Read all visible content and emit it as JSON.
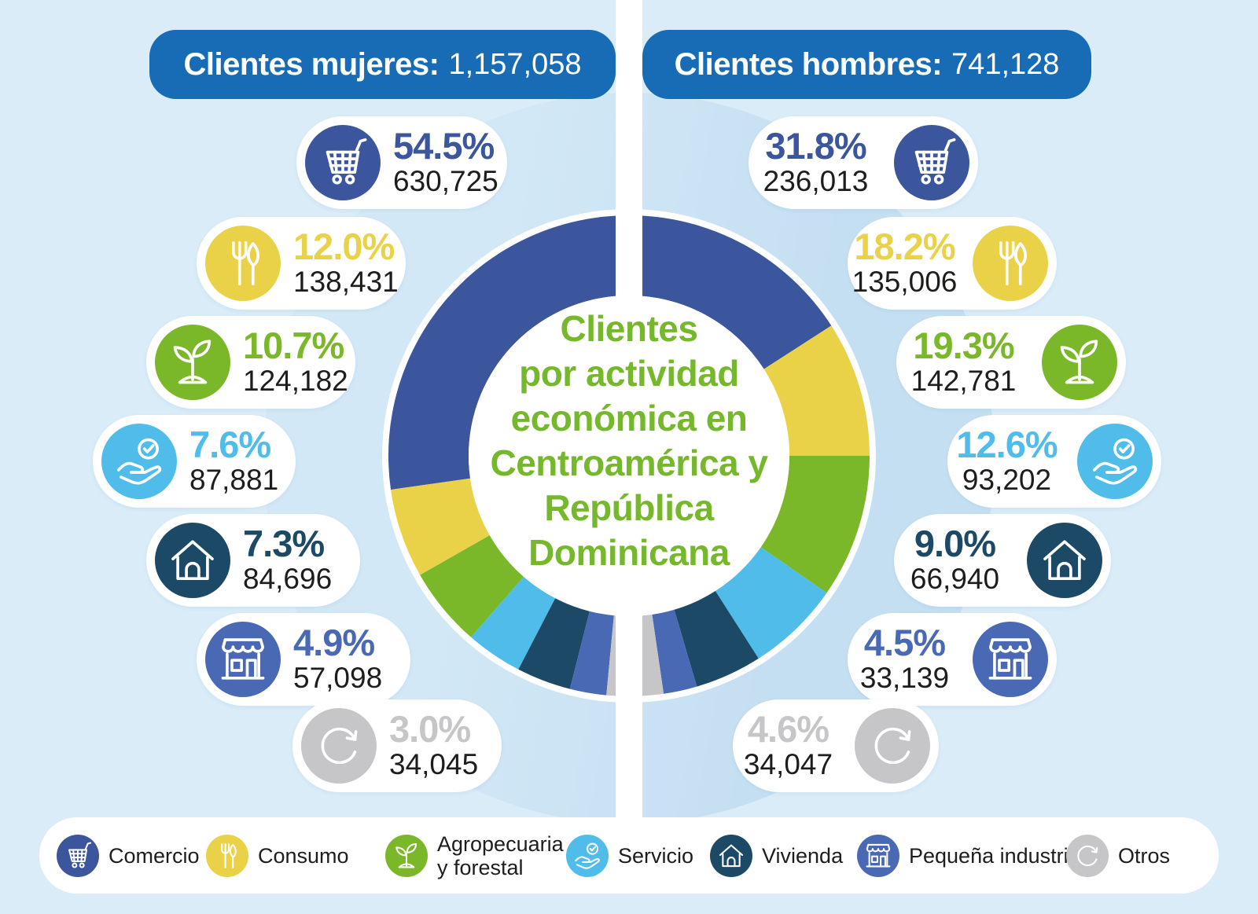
{
  "header": {
    "left": {
      "label": "Clientes mujeres:",
      "value": "1,157,058"
    },
    "right": {
      "label": "Clientes hombres:",
      "value": "741,128"
    },
    "bar_color": "#176CB5"
  },
  "donut_title": {
    "text": "Clientes por actividad económica en Centroamérica y República Dominicana",
    "lines": [
      "Clientes",
      "por actividad",
      "económica en",
      "Centroamérica y",
      "República",
      "Dominicana"
    ],
    "color": "#76B82C"
  },
  "categories": [
    {
      "label": "Comercio",
      "icon": "cart-icon",
      "color": "#3B569D"
    },
    {
      "label": "Consumo",
      "icon": "cutlery-icon",
      "color": "#EAD248"
    },
    {
      "label": "Agropecuaria\ny forestal",
      "icon": "plant-icon",
      "color": "#7AB829"
    },
    {
      "label": "Servicio",
      "icon": "hand-check-icon",
      "color": "#4FBCE9"
    },
    {
      "label": "Vivienda",
      "icon": "house-icon",
      "color": "#1C4A66"
    },
    {
      "label": "Pequeña industria",
      "icon": "store-icon",
      "color": "#4A69B4"
    },
    {
      "label": "Otros",
      "icon": "refresh-icon",
      "color": "#C6C6C8"
    }
  ],
  "left_stats": [
    {
      "pct": "54.5%",
      "count": "630,725"
    },
    {
      "pct": "12.0%",
      "count": "138,431"
    },
    {
      "pct": "10.7%",
      "count": "124,182"
    },
    {
      "pct": "7.6%",
      "count": "87,881"
    },
    {
      "pct": "7.3%",
      "count": "84,696"
    },
    {
      "pct": "4.9%",
      "count": "57,098"
    },
    {
      "pct": "3.0%",
      "count": "34,045"
    }
  ],
  "right_stats": [
    {
      "pct": "31.8%",
      "count": "236,013"
    },
    {
      "pct": "18.2%",
      "count": "135,006"
    },
    {
      "pct": "19.3%",
      "count": "142,781"
    },
    {
      "pct": "12.6%",
      "count": "93,202"
    },
    {
      "pct": "9.0%",
      "count": "66,940"
    },
    {
      "pct": "4.5%",
      "count": "33,139"
    },
    {
      "pct": "4.6%",
      "count": "34,047"
    }
  ],
  "chart_data": {
    "type": "pie",
    "subtype": "split-donut",
    "title": "Clientes por actividad económica en Centroamérica y República Dominicana",
    "categories": [
      "Comercio",
      "Consumo",
      "Agropecuaria y forestal",
      "Servicio",
      "Vivienda",
      "Pequeña industria",
      "Otros"
    ],
    "colors": [
      "#3B569D",
      "#EAD248",
      "#7AB829",
      "#4FBCE9",
      "#1C4A66",
      "#4A69B4",
      "#C6C6C8"
    ],
    "series": [
      {
        "name": "Clientes mujeres",
        "position": "left-half",
        "total": 1157058,
        "percent": [
          54.5,
          12.0,
          10.7,
          7.6,
          7.3,
          4.9,
          3.0
        ],
        "values": [
          630725,
          138431,
          124182,
          87881,
          84696,
          57098,
          34045
        ]
      },
      {
        "name": "Clientes hombres",
        "position": "right-half",
        "total": 741128,
        "percent": [
          31.8,
          18.2,
          19.3,
          12.6,
          9.0,
          4.5,
          4.6
        ],
        "values": [
          236013,
          135006,
          142781,
          93202,
          66940,
          33139,
          34047
        ]
      }
    ],
    "legend_position": "bottom"
  }
}
